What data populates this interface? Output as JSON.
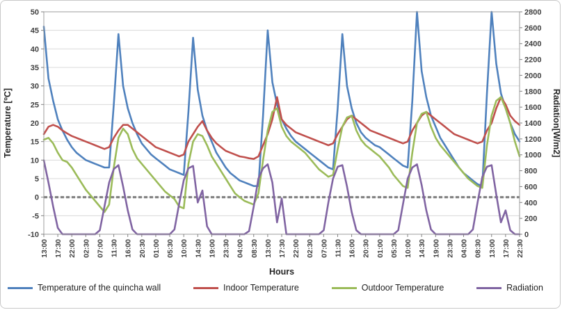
{
  "chart": {
    "x_axis_title": "Hours",
    "y_axis_left_title": "Temperature [ºC]",
    "y_axis_right_title": "Radiation[W/m2]"
  },
  "chart_data": {
    "type": "line",
    "sample_interval_hours": 1.5,
    "x_tick_interval_hours": 4.5,
    "x_tick_labels": [
      "13:00",
      "17:30",
      "22:00",
      "02:30",
      "07:00",
      "11:30",
      "16:00",
      "20:30",
      "01:00",
      "05:30",
      "10:00",
      "14:30",
      "19:00",
      "23:30",
      "04:00",
      "08:30",
      "13:00",
      "17:30",
      "22:00",
      "02:30",
      "07:00",
      "11:30",
      "16:00",
      "20:30",
      "01:00",
      "05:30",
      "10:00",
      "14:30",
      "19:00",
      "23:30",
      "04:00",
      "08:30",
      "13:00",
      "17:30",
      "22:30"
    ],
    "ylim_left": [
      -10,
      50
    ],
    "y_ticks_left": [
      -10,
      -5,
      0,
      5,
      10,
      15,
      20,
      25,
      30,
      35,
      40,
      45,
      50
    ],
    "ylim_right": [
      0,
      2800
    ],
    "y_ticks_right": [
      0,
      200,
      400,
      600,
      800,
      1000,
      1200,
      1400,
      1600,
      1800,
      2000,
      2200,
      2400,
      2600,
      2800
    ],
    "grid": true,
    "legend_position": "bottom",
    "colors": {
      "gridline": "#d9d9d9",
      "frame": "#9e9e9e",
      "tick": "#808080"
    },
    "reference_line": {
      "axis": "left",
      "value": 0,
      "style": "dashed",
      "color": "#808080"
    },
    "series": [
      {
        "name": "Temperature of the quincha wall",
        "color": "#4F81BD",
        "axis": "left",
        "values": [
          46,
          32,
          26,
          21,
          18,
          15.5,
          13.5,
          12,
          11,
          10,
          9.5,
          9,
          8.5,
          8,
          8,
          25,
          44,
          30,
          24,
          20,
          17,
          14.5,
          13,
          11.5,
          10.5,
          9.5,
          8.5,
          7.5,
          7,
          6.5,
          6,
          23,
          43,
          29,
          22,
          18,
          15,
          12,
          10,
          8,
          6.5,
          5.5,
          4.5,
          4,
          3.5,
          3,
          3,
          22,
          45,
          31,
          25,
          21,
          18.5,
          16.5,
          15,
          14,
          13,
          12,
          11,
          10,
          9,
          8,
          7.5,
          24,
          44,
          30,
          24,
          20,
          17.5,
          16,
          15,
          14,
          13.5,
          12.5,
          11.5,
          10.5,
          9.5,
          8.5,
          8,
          26,
          50,
          34,
          27,
          22,
          19,
          16,
          14,
          12,
          10,
          8,
          6.5,
          5.5,
          4.5,
          3.5,
          3,
          28,
          50,
          36,
          28,
          24,
          20,
          17,
          15
        ]
      },
      {
        "name": "Indoor Temperature",
        "color": "#C0504D",
        "axis": "left",
        "values": [
          17,
          19,
          19.5,
          19,
          18,
          17.2,
          16.5,
          16,
          15.5,
          15,
          14.5,
          14,
          13.5,
          13,
          13.5,
          16,
          18,
          19.5,
          19.5,
          18.5,
          17.5,
          16.5,
          15.5,
          14.5,
          13.5,
          13,
          12.5,
          12,
          11.5,
          11,
          11.5,
          15,
          17,
          19,
          20.5,
          18,
          16,
          14.5,
          13.5,
          12.5,
          12,
          11.5,
          11,
          10.8,
          10.5,
          10.3,
          11,
          14,
          17,
          21,
          27,
          21,
          19.5,
          18.5,
          17.5,
          17,
          16.5,
          16,
          15.5,
          15,
          14.5,
          14,
          14.5,
          17,
          19,
          21,
          22,
          21,
          20,
          19,
          18,
          17.5,
          17,
          16.5,
          16,
          15.5,
          15,
          14.5,
          15,
          18,
          20,
          22,
          23,
          22,
          21,
          20,
          19,
          18,
          17,
          16.5,
          16,
          15.5,
          15,
          14.5,
          15,
          18,
          20,
          24,
          27,
          25,
          22,
          20.5,
          19.5
        ]
      },
      {
        "name": "Outdoor Temperature",
        "color": "#9BBB59",
        "axis": "left",
        "values": [
          15.5,
          16,
          14.5,
          12,
          10,
          9.5,
          8,
          6,
          4,
          2,
          0.5,
          -1,
          -2.5,
          -4,
          -2,
          8,
          16,
          18.5,
          17,
          13,
          10.5,
          9,
          7.5,
          6,
          4.5,
          3,
          1.5,
          0.5,
          -0.5,
          -2.5,
          -3,
          9,
          15,
          17,
          16.5,
          14,
          11,
          9,
          7,
          5,
          3,
          1,
          0,
          -1,
          -1.5,
          -2,
          1,
          10,
          18,
          23,
          24,
          19,
          16.5,
          15,
          14,
          13,
          12,
          10.5,
          9,
          7.5,
          6.5,
          5.5,
          6,
          13,
          19,
          21.5,
          22,
          18,
          15.5,
          14,
          13,
          12,
          11,
          9.5,
          8,
          6,
          4.5,
          3,
          2.5,
          12,
          20,
          22.5,
          23,
          19,
          16,
          14,
          12.5,
          11,
          9.5,
          8,
          6.5,
          5,
          4,
          3,
          2.5,
          14,
          22,
          26,
          27,
          24,
          20,
          15,
          11
        ]
      },
      {
        "name": "Radiation",
        "color": "#8064A2",
        "axis": "right",
        "values": [
          930,
          650,
          350,
          80,
          0,
          0,
          0,
          0,
          0,
          0,
          0,
          0,
          50,
          350,
          650,
          820,
          870,
          600,
          300,
          60,
          0,
          0,
          0,
          0,
          0,
          0,
          0,
          0,
          60,
          380,
          680,
          830,
          860,
          400,
          550,
          100,
          0,
          0,
          0,
          0,
          0,
          0,
          0,
          0,
          40,
          350,
          700,
          830,
          880,
          650,
          150,
          450,
          0,
          0,
          0,
          0,
          0,
          0,
          0,
          0,
          50,
          400,
          700,
          850,
          870,
          600,
          280,
          50,
          0,
          0,
          0,
          0,
          0,
          0,
          0,
          0,
          50,
          380,
          700,
          840,
          880,
          620,
          300,
          60,
          0,
          0,
          0,
          0,
          0,
          0,
          0,
          0,
          60,
          400,
          720,
          850,
          870,
          500,
          150,
          300,
          50,
          0,
          0
        ]
      }
    ]
  }
}
